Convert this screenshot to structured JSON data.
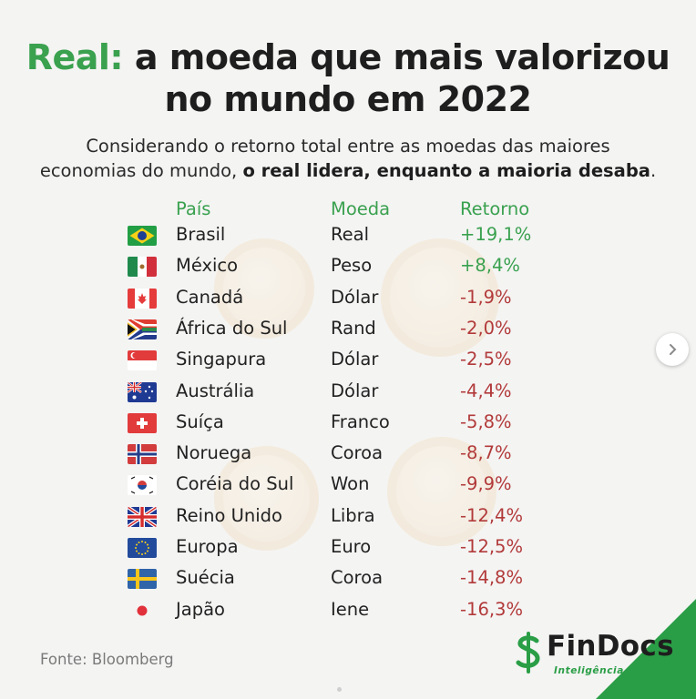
{
  "title": {
    "accent": "Real:",
    "rest": " a moeda que mais valorizou",
    "line2": "no mundo em 2022"
  },
  "subtitle": {
    "line1": "Considerando o retorno total entre as moedas das maiores",
    "line2_plain": "economias do mundo, ",
    "line2_bold": "o real lidera, enquanto a maioria desaba",
    "line2_end": "."
  },
  "headers": {
    "pais": "País",
    "moeda": "Moeda",
    "retorno": "Retorno"
  },
  "rows": [
    {
      "pais": "Brasil",
      "moeda": "Real",
      "retorno": "+19,1%",
      "flag": "brazil-flag"
    },
    {
      "pais": "México",
      "moeda": "Peso",
      "retorno": "+8,4%",
      "flag": "mexico-flag"
    },
    {
      "pais": "Canadá",
      "moeda": "Dólar",
      "retorno": "-1,9%",
      "flag": "canada-flag"
    },
    {
      "pais": "África do Sul",
      "moeda": "Rand",
      "retorno": "-2,0%",
      "flag": "south-africa-flag"
    },
    {
      "pais": "Singapura",
      "moeda": "Dólar",
      "retorno": "-2,5%",
      "flag": "singapore-flag"
    },
    {
      "pais": "Austrália",
      "moeda": "Dólar",
      "retorno": "-4,4%",
      "flag": "australia-flag"
    },
    {
      "pais": "Suíça",
      "moeda": "Franco",
      "retorno": "-5,8%",
      "flag": "switzerland-flag"
    },
    {
      "pais": "Noruega",
      "moeda": "Coroa",
      "retorno": "-8,7%",
      "flag": "norway-flag"
    },
    {
      "pais": "Coréia do Sul",
      "moeda": "Won",
      "retorno": "-9,9%",
      "flag": "south-korea-flag"
    },
    {
      "pais": "Reino Unido",
      "moeda": "Libra",
      "retorno": "-12,4%",
      "flag": "united-kingdom-flag"
    },
    {
      "pais": "Europa",
      "moeda": "Euro",
      "retorno": "-12,5%",
      "flag": "european-union-flag"
    },
    {
      "pais": "Suécia",
      "moeda": "Coroa",
      "retorno": "-14,8%",
      "flag": "sweden-flag"
    },
    {
      "pais": "Japão",
      "moeda": "Iene",
      "retorno": "-16,3%",
      "flag": "japan-flag"
    }
  ],
  "source": "Fonte: Bloomberg",
  "brand": {
    "name": "FinDocs",
    "tagline": "Inteligência Financeira"
  },
  "colors": {
    "accent_green": "#3aa14f",
    "negative_red": "#b23a3a",
    "brand_green": "#2a9e46"
  }
}
